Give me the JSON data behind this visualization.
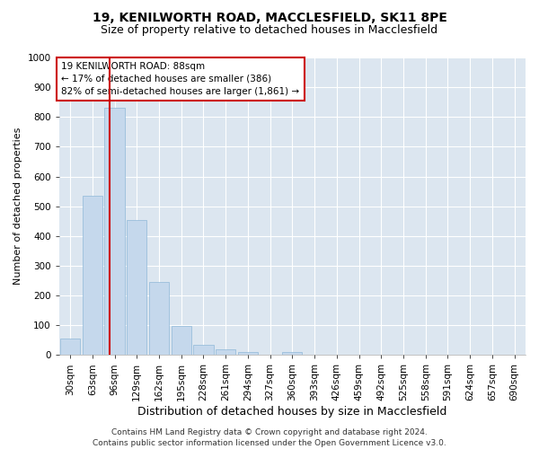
{
  "title1": "19, KENILWORTH ROAD, MACCLESFIELD, SK11 8PE",
  "title2": "Size of property relative to detached houses in Macclesfield",
  "xlabel": "Distribution of detached houses by size in Macclesfield",
  "ylabel": "Number of detached properties",
  "bar_values": [
    55,
    535,
    830,
    455,
    245,
    97,
    33,
    20,
    10,
    0,
    10,
    0,
    0,
    0,
    0,
    0,
    0,
    0,
    0,
    0,
    0
  ],
  "bar_labels": [
    "30sqm",
    "63sqm",
    "96sqm",
    "129sqm",
    "162sqm",
    "195sqm",
    "228sqm",
    "261sqm",
    "294sqm",
    "327sqm",
    "360sqm",
    "393sqm",
    "426sqm",
    "459sqm",
    "492sqm",
    "525sqm",
    "558sqm",
    "591sqm",
    "624sqm",
    "657sqm",
    "690sqm"
  ],
  "bar_color": "#c5d8ec",
  "bar_edgecolor": "#8fb8d8",
  "ylim": [
    0,
    1000
  ],
  "yticks": [
    0,
    100,
    200,
    300,
    400,
    500,
    600,
    700,
    800,
    900,
    1000
  ],
  "property_line_color": "#cc0000",
  "annotation_text": "19 KENILWORTH ROAD: 88sqm\n← 17% of detached houses are smaller (386)\n82% of semi-detached houses are larger (1,861) →",
  "annotation_box_color": "#ffffff",
  "annotation_box_edgecolor": "#cc0000",
  "footer1": "Contains HM Land Registry data © Crown copyright and database right 2024.",
  "footer2": "Contains public sector information licensed under the Open Government Licence v3.0.",
  "background_color": "#dce6f0",
  "grid_color": "#ffffff",
  "fig_background": "#ffffff",
  "title1_fontsize": 10,
  "title2_fontsize": 9,
  "xlabel_fontsize": 9,
  "ylabel_fontsize": 8,
  "tick_fontsize": 7.5,
  "annotation_fontsize": 7.5,
  "footer_fontsize": 6.5
}
